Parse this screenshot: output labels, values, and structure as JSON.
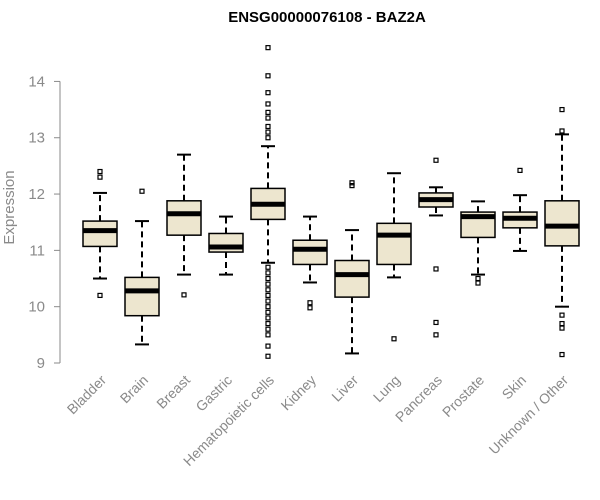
{
  "chart_data": {
    "type": "boxplot",
    "title": "ENSG00000076108 - BAZ2A",
    "xlabel": "",
    "ylabel": "Expression",
    "ylim": [
      9,
      14.7
    ],
    "yticks": [
      9,
      10,
      11,
      12,
      13,
      14
    ],
    "box_fill": "#ede6cf",
    "box_stroke": "#000000",
    "axis_color": "#8a8a8a",
    "categories": [
      "Bladder",
      "Brain",
      "Breast",
      "Gastric",
      "Hematopoietic cells",
      "Kidney",
      "Liver",
      "Lung",
      "Pancreas",
      "Prostate",
      "Skin",
      "Unknown / Other"
    ],
    "series": [
      {
        "name": "Bladder",
        "min": 10.5,
        "q1": 11.07,
        "median": 11.35,
        "q3": 11.52,
        "max": 12.02,
        "outliers": [
          12.4,
          12.3,
          10.2
        ]
      },
      {
        "name": "Brain",
        "min": 9.33,
        "q1": 9.84,
        "median": 10.28,
        "q3": 10.52,
        "max": 11.52,
        "outliers": [
          12.05
        ]
      },
      {
        "name": "Breast",
        "min": 10.57,
        "q1": 11.27,
        "median": 11.65,
        "q3": 11.88,
        "max": 12.7,
        "outliers": [
          10.21
        ]
      },
      {
        "name": "Gastric",
        "min": 10.57,
        "q1": 10.97,
        "median": 11.06,
        "q3": 11.3,
        "max": 11.6,
        "outliers": []
      },
      {
        "name": "Hematopoietic cells",
        "min": 10.78,
        "q1": 11.55,
        "median": 11.82,
        "q3": 12.1,
        "max": 12.85,
        "outliers": [
          14.6,
          14.1,
          13.8,
          13.6,
          13.45,
          13.35,
          13.2,
          13.1,
          13.0,
          10.7,
          10.6,
          10.5,
          10.4,
          10.3,
          10.2,
          10.1,
          10.0,
          9.9,
          9.8,
          9.7,
          9.6,
          9.5,
          9.3,
          9.12
        ]
      },
      {
        "name": "Kidney",
        "min": 10.43,
        "q1": 10.75,
        "median": 11.02,
        "q3": 11.18,
        "max": 11.6,
        "outliers": [
          10.07,
          9.98
        ]
      },
      {
        "name": "Liver",
        "min": 9.17,
        "q1": 10.17,
        "median": 10.57,
        "q3": 10.82,
        "max": 11.36,
        "outliers": [
          12.2,
          12.15
        ]
      },
      {
        "name": "Lung",
        "min": 10.52,
        "q1": 10.75,
        "median": 11.27,
        "q3": 11.48,
        "max": 12.37,
        "outliers": [
          9.43
        ]
      },
      {
        "name": "Pancreas",
        "min": 11.62,
        "q1": 11.77,
        "median": 11.9,
        "q3": 12.02,
        "max": 12.12,
        "outliers": [
          12.6,
          10.67,
          9.72,
          9.5
        ]
      },
      {
        "name": "Prostate",
        "min": 10.57,
        "q1": 11.23,
        "median": 11.6,
        "q3": 11.68,
        "max": 11.87,
        "outliers": [
          10.5,
          10.42
        ]
      },
      {
        "name": "Skin",
        "min": 10.99,
        "q1": 11.4,
        "median": 11.57,
        "q3": 11.68,
        "max": 11.98,
        "outliers": [
          12.42
        ]
      },
      {
        "name": "Unknown / Other",
        "min": 10.0,
        "q1": 11.08,
        "median": 11.43,
        "q3": 11.88,
        "max": 13.06,
        "outliers": [
          13.5,
          13.12,
          9.85,
          9.7,
          9.62,
          9.15
        ]
      }
    ]
  }
}
